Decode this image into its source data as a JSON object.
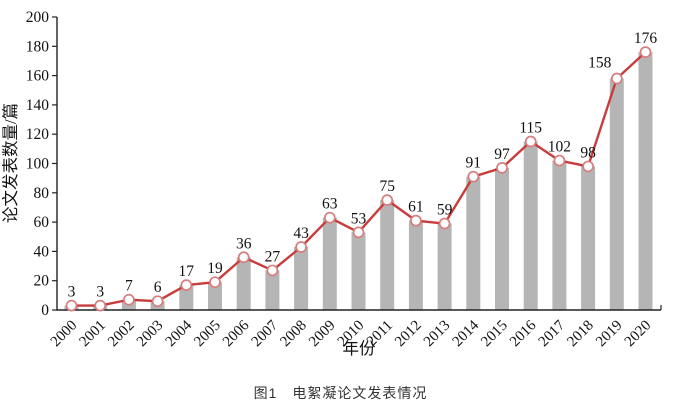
{
  "chart_data": {
    "type": "bar",
    "overlay": "line",
    "title": "",
    "xlabel": "年份",
    "ylabel": "论文发表数量/篇",
    "categories": [
      "2000",
      "2001",
      "2002",
      "2003",
      "2004",
      "2005",
      "2006",
      "2007",
      "2008",
      "2009",
      "2010",
      "2011",
      "2012",
      "2013",
      "2014",
      "2015",
      "2016",
      "2017",
      "2018",
      "2019",
      "2020"
    ],
    "values": [
      3,
      3,
      7,
      6,
      17,
      19,
      36,
      27,
      43,
      63,
      53,
      75,
      61,
      59,
      91,
      97,
      115,
      102,
      98,
      158,
      176
    ],
    "ylim": [
      0,
      200
    ],
    "yticks": [
      0,
      20,
      40,
      60,
      80,
      100,
      120,
      140,
      160,
      180,
      200
    ],
    "grid": "off",
    "legend": "none",
    "colors": {
      "bar": "#b5b5b5",
      "line": "#c83c3c",
      "marker_fill": "#ffffff",
      "marker_edge": "#d47e7e",
      "axis": "#222222",
      "text": "#111111"
    }
  },
  "caption": "图1　电絮凝论文发表情况"
}
